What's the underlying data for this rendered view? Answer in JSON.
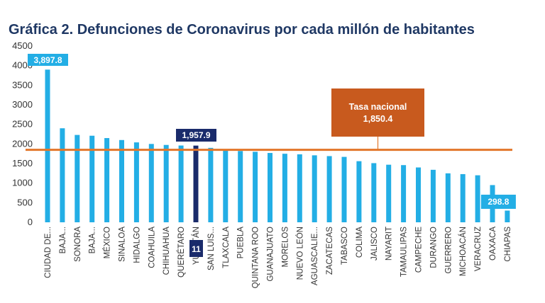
{
  "chart_data": {
    "type": "bar",
    "title": "Gráfica 2. Defunciones de Coronavirus por cada millón de habitantes",
    "xlabel": "",
    "ylabel": "",
    "ylim": [
      0,
      4500
    ],
    "yticks": [
      0,
      500,
      1000,
      1500,
      2000,
      2500,
      3000,
      3500,
      4000,
      4500
    ],
    "categories": [
      "CIUDAD DE...",
      "BAJA...",
      "SONORA",
      "BAJA...",
      "MÉXICO",
      "SINALOA",
      "HIDALGO",
      "COAHUILA",
      "CHIHUAHUA",
      "QUERÉTARO",
      "YUCATÁN",
      "SAN LUIS...",
      "TLAXCALA",
      "PUEBLA",
      "QUINTANA ROO",
      "GUANAJUATO",
      "MORELOS",
      "NUEVO LEÓN",
      "AGUASCALIE...",
      "ZACATECAS",
      "TABASCO",
      "COLIMA",
      "JALISCO",
      "NAYARIT",
      "TAMAULIPAS",
      "CAMPECHE",
      "DURANGO",
      "GUERRERO",
      "MICHOACÁN",
      "VERACRUZ",
      "OAXACA",
      "CHIAPAS"
    ],
    "values": [
      3897.8,
      2400,
      2230,
      2210,
      2150,
      2100,
      2040,
      2000,
      1975,
      1960,
      1957.9,
      1900,
      1840,
      1820,
      1800,
      1770,
      1750,
      1735,
      1710,
      1690,
      1670,
      1560,
      1510,
      1470,
      1460,
      1400,
      1340,
      1250,
      1230,
      1200,
      950,
      298.8
    ],
    "highlight_index": 10,
    "colors": {
      "bar": "#23aee5",
      "highlight_bar": "#1a2b6b",
      "national_line": "#e2762a",
      "callout_blue": "#23aee5",
      "callout_dark": "#1a2b6b",
      "national_box": "#c85a1e",
      "title": "#1f3864"
    },
    "annotations": {
      "max_label": "3,897.8",
      "min_label": "298.8",
      "highlight_label": "1,957.9",
      "rank": "11",
      "national_title": "Tasa nacional",
      "national_value_text": "1,850.4",
      "national_value": 1850.4
    },
    "grid": false,
    "legend": "none"
  }
}
